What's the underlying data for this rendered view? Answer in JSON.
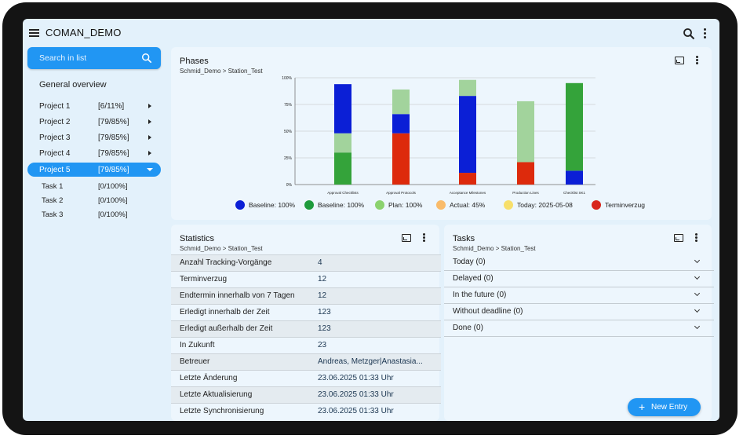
{
  "app": {
    "title": "COMAN_DEMO"
  },
  "sidebar": {
    "search_placeholder": "Search in list",
    "general_overview": "General overview",
    "projects": [
      {
        "name": "Project 1",
        "progress": "[6/11%]",
        "expanded": false
      },
      {
        "name": "Project 2",
        "progress": "[79/85%]",
        "expanded": false
      },
      {
        "name": "Project 3",
        "progress": "[79/85%]",
        "expanded": false
      },
      {
        "name": "Project 4",
        "progress": "[79/85%]",
        "expanded": false
      },
      {
        "name": "Project 5",
        "progress": "[79/85%]",
        "expanded": true
      }
    ],
    "tasks": [
      {
        "name": "Task 1",
        "progress": "[0/100%]"
      },
      {
        "name": "Task 2",
        "progress": "[0/100%]"
      },
      {
        "name": "Task 3",
        "progress": "[0/100%]"
      }
    ]
  },
  "phases": {
    "title": "Phases",
    "breadcrumb": "Schmid_Demo > Station_Test"
  },
  "chart_data": {
    "type": "bar",
    "stacked": true,
    "categories": [
      "Approval Checklists",
      "Approval Protocols",
      "Acceptance Milestones",
      "Production Lines",
      "Checklist SK1"
    ],
    "yticks": [
      "0%",
      "25%",
      "50%",
      "75%",
      "100%"
    ],
    "ylim": [
      0,
      100
    ],
    "grid": true,
    "legend_position": "bottom",
    "segments": [
      [
        {
          "color": "#34a33a",
          "value": 30
        },
        {
          "color": "#a2d39c",
          "value": 18
        },
        {
          "color": "#0b1fd6",
          "value": 46
        }
      ],
      [
        {
          "color": "#dd2a0c",
          "value": 48
        },
        {
          "color": "#0b1fd6",
          "value": 18
        },
        {
          "color": "#a2d39c",
          "value": 23
        }
      ],
      [
        {
          "color": "#dd2a0c",
          "value": 11
        },
        {
          "color": "#0b1fd6",
          "value": 72
        },
        {
          "color": "#a2d39c",
          "value": 15
        }
      ],
      [
        {
          "color": "#dd2a0c",
          "value": 21
        },
        {
          "color": "#a2d39c",
          "value": 57
        }
      ],
      [
        {
          "color": "#0b1fd6",
          "value": 13
        },
        {
          "color": "#34a33a",
          "value": 82
        }
      ]
    ],
    "legend": [
      {
        "label": "Baseline: 100%",
        "color": "#0b1fd6"
      },
      {
        "label": "Baseline: 100%",
        "color": "#1e9b3c"
      },
      {
        "label": "Plan: 100%",
        "color": "#8bd26e"
      },
      {
        "label": "Actual: 45%",
        "color": "#f9bb6a"
      },
      {
        "label": "Today: 2025-05-08",
        "color": "#f7df6b"
      },
      {
        "label": "Terminverzug",
        "color": "#d8251c"
      }
    ]
  },
  "statistics": {
    "title": "Statistics",
    "breadcrumb": "Schmid_Demo > Station_Test",
    "rows": [
      {
        "key": "Anzahl Tracking-Vorgänge",
        "value": "4"
      },
      {
        "key": "Terminverzug",
        "value": "12"
      },
      {
        "key": "Endtermin innerhalb von 7 Tagen",
        "value": "12"
      },
      {
        "key": "Erledigt innerhalb der Zeit",
        "value": "123"
      },
      {
        "key": "Erledigt außerhalb der Zeit",
        "value": "123"
      },
      {
        "key": "In Zukunft",
        "value": "23"
      },
      {
        "key": "Betreuer",
        "value": "Andreas, Metzger|Anastasia..."
      },
      {
        "key": "Letzte Änderung",
        "value": "23.06.2025 01:33 Uhr"
      },
      {
        "key": "Letzte Aktualisierung",
        "value": "23.06.2025 01:33 Uhr"
      },
      {
        "key": "Letzte Synchronisierung",
        "value": "23.06.2025 01:33 Uhr"
      }
    ]
  },
  "tasks": {
    "title": "Tasks",
    "breadcrumb": "Schmid_Demo > Station_Test",
    "groups": [
      "Today (0)",
      "Delayed (0)",
      "In the future (0)",
      "Without deadline (0)",
      "Done (0)"
    ],
    "new_entry_label": "New Entry"
  }
}
